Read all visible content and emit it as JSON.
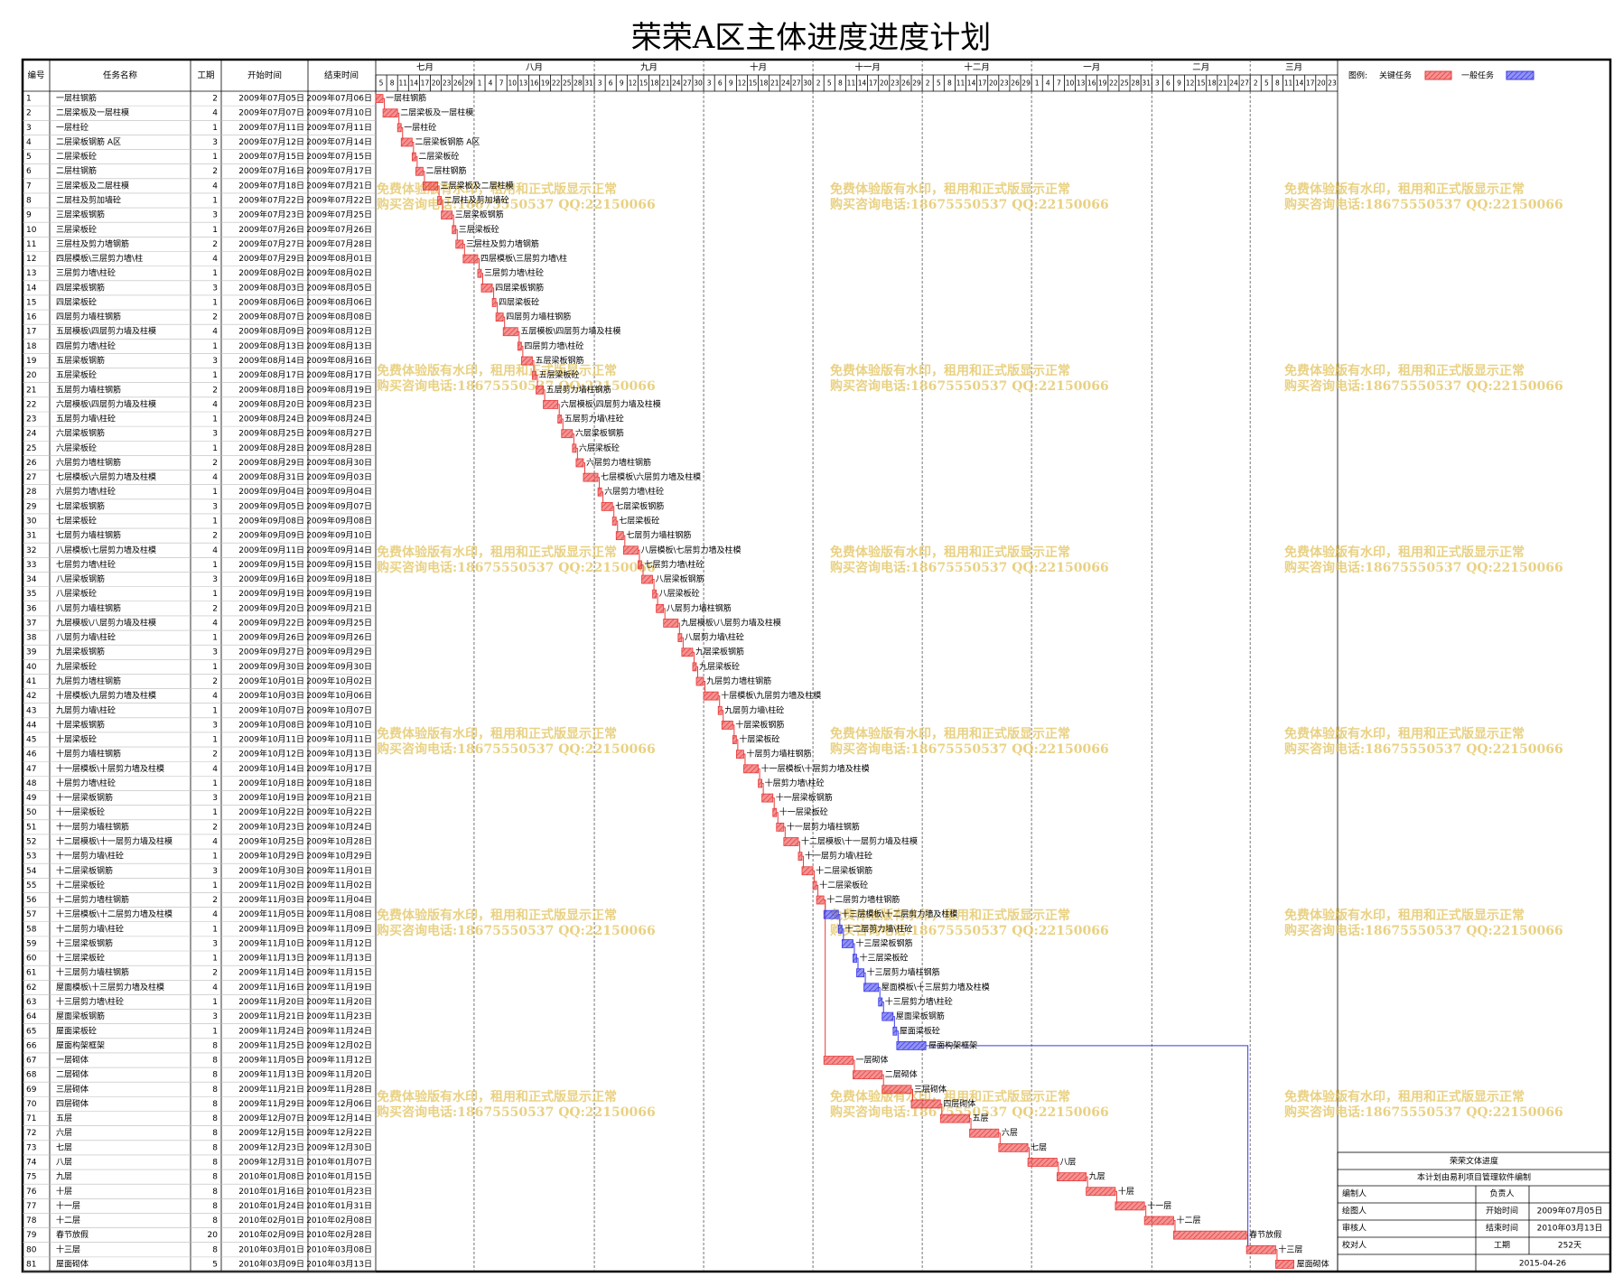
{
  "title": "荣荣A区主体进度进度计划",
  "columns": [
    "编号",
    "任务名称",
    "工期",
    "开始时间",
    "结束时间"
  ],
  "timeline": {
    "months": [
      {
        "name": "七月",
        "days": [
          5,
          8,
          11,
          14,
          17,
          20,
          23,
          26,
          29
        ]
      },
      {
        "name": "八月",
        "days": [
          1,
          4,
          7,
          10,
          13,
          16,
          19,
          22,
          25,
          28,
          31
        ]
      },
      {
        "name": "九月",
        "days": [
          3,
          6,
          9,
          12,
          15,
          18,
          21,
          24,
          27,
          30
        ]
      },
      {
        "name": "十月",
        "days": [
          3,
          6,
          9,
          12,
          15,
          18,
          21,
          24,
          27,
          30
        ]
      },
      {
        "name": "十一月",
        "days": [
          2,
          5,
          8,
          11,
          14,
          17,
          20,
          23,
          26,
          29
        ]
      },
      {
        "name": "十二月",
        "days": [
          2,
          5,
          8,
          11,
          14,
          17,
          20,
          23,
          26,
          29
        ]
      },
      {
        "name": "一月",
        "days": [
          1,
          4,
          7,
          10,
          13,
          16,
          19,
          22,
          25,
          28,
          31
        ]
      },
      {
        "name": "二月",
        "days": [
          3,
          6,
          9,
          12,
          15,
          18,
          21,
          24,
          27
        ]
      },
      {
        "name": "三月",
        "days": [
          2,
          5,
          8,
          11,
          14,
          17,
          20,
          23
        ]
      }
    ]
  },
  "legend": {
    "label": "图例:",
    "critical": {
      "label": "关键任务",
      "color": "#e83a3a"
    },
    "normal": {
      "label": "一般任务",
      "color": "#3a3ae8"
    }
  },
  "tasks": [
    {
      "id": 1,
      "name": "一层柱钢筋",
      "days": 2,
      "start": "2009年07月05日",
      "end": "2009年07月06日",
      "critical": true
    },
    {
      "id": 2,
      "name": "二层梁板及一层柱模",
      "days": 4,
      "start": "2009年07月07日",
      "end": "2009年07月10日",
      "critical": true
    },
    {
      "id": 3,
      "name": "一层柱砼",
      "days": 1,
      "start": "2009年07月11日",
      "end": "2009年07月11日",
      "critical": true
    },
    {
      "id": 4,
      "name": "二层梁板钢筋 A区",
      "days": 3,
      "start": "2009年07月12日",
      "end": "2009年07月14日",
      "critical": true
    },
    {
      "id": 5,
      "name": "二层梁板砼",
      "days": 1,
      "start": "2009年07月15日",
      "end": "2009年07月15日",
      "critical": true
    },
    {
      "id": 6,
      "name": "二层柱钢筋",
      "days": 2,
      "start": "2009年07月16日",
      "end": "2009年07月17日",
      "critical": true
    },
    {
      "id": 7,
      "name": "三层梁板及二层柱模",
      "days": 4,
      "start": "2009年07月18日",
      "end": "2009年07月21日",
      "critical": true
    },
    {
      "id": 8,
      "name": "二层柱及剪加墙砼",
      "days": 1,
      "start": "2009年07月22日",
      "end": "2009年07月22日",
      "critical": true
    },
    {
      "id": 9,
      "name": "三层梁板钢筋",
      "days": 3,
      "start": "2009年07月23日",
      "end": "2009年07月25日",
      "critical": true
    },
    {
      "id": 10,
      "name": "三层梁板砼",
      "days": 1,
      "start": "2009年07月26日",
      "end": "2009年07月26日",
      "critical": true
    },
    {
      "id": 11,
      "name": "三层柱及剪力墙钢筋",
      "days": 2,
      "start": "2009年07月27日",
      "end": "2009年07月28日",
      "critical": true
    },
    {
      "id": 12,
      "name": "四层模板\\三层剪力墙\\柱",
      "days": 4,
      "start": "2009年07月29日",
      "end": "2009年08月01日",
      "critical": true
    },
    {
      "id": 13,
      "name": "三层剪力墙\\柱砼",
      "days": 1,
      "start": "2009年08月02日",
      "end": "2009年08月02日",
      "critical": true
    },
    {
      "id": 14,
      "name": "四层梁板钢筋",
      "days": 3,
      "start": "2009年08月03日",
      "end": "2009年08月05日",
      "critical": true
    },
    {
      "id": 15,
      "name": "四层梁板砼",
      "days": 1,
      "start": "2009年08月06日",
      "end": "2009年08月06日",
      "critical": true
    },
    {
      "id": 16,
      "name": "四层剪力墙柱钢筋",
      "days": 2,
      "start": "2009年08月07日",
      "end": "2009年08月08日",
      "critical": true
    },
    {
      "id": 17,
      "name": "五层模板\\四层剪力墙及柱模",
      "days": 4,
      "start": "2009年08月09日",
      "end": "2009年08月12日",
      "critical": true
    },
    {
      "id": 18,
      "name": "四层剪力墙\\柱砼",
      "days": 1,
      "start": "2009年08月13日",
      "end": "2009年08月13日",
      "critical": true
    },
    {
      "id": 19,
      "name": "五层梁板钢筋",
      "days": 3,
      "start": "2009年08月14日",
      "end": "2009年08月16日",
      "critical": true
    },
    {
      "id": 20,
      "name": "五层梁板砼",
      "days": 1,
      "start": "2009年08月17日",
      "end": "2009年08月17日",
      "critical": true
    },
    {
      "id": 21,
      "name": "五层剪力墙柱钢筋",
      "days": 2,
      "start": "2009年08月18日",
      "end": "2009年08月19日",
      "critical": true
    },
    {
      "id": 22,
      "name": "六层模板\\四层剪力墙及柱模",
      "days": 4,
      "start": "2009年08月20日",
      "end": "2009年08月23日",
      "critical": true
    },
    {
      "id": 23,
      "name": "五层剪力墙\\柱砼",
      "days": 1,
      "start": "2009年08月24日",
      "end": "2009年08月24日",
      "critical": true
    },
    {
      "id": 24,
      "name": "六层梁板钢筋",
      "days": 3,
      "start": "2009年08月25日",
      "end": "2009年08月27日",
      "critical": true
    },
    {
      "id": 25,
      "name": "六层梁板砼",
      "days": 1,
      "start": "2009年08月28日",
      "end": "2009年08月28日",
      "critical": true
    },
    {
      "id": 26,
      "name": "六层剪力墙柱钢筋",
      "days": 2,
      "start": "2009年08月29日",
      "end": "2009年08月30日",
      "critical": true
    },
    {
      "id": 27,
      "name": "七层模板\\六层剪力墙及柱模",
      "days": 4,
      "start": "2009年08月31日",
      "end": "2009年09月03日",
      "critical": true
    },
    {
      "id": 28,
      "name": "六层剪力墙\\柱砼",
      "days": 1,
      "start": "2009年09月04日",
      "end": "2009年09月04日",
      "critical": true
    },
    {
      "id": 29,
      "name": "七层梁板钢筋",
      "days": 3,
      "start": "2009年09月05日",
      "end": "2009年09月07日",
      "critical": true
    },
    {
      "id": 30,
      "name": "七层梁板砼",
      "days": 1,
      "start": "2009年09月08日",
      "end": "2009年09月08日",
      "critical": true
    },
    {
      "id": 31,
      "name": "七层剪力墙柱钢筋",
      "days": 2,
      "start": "2009年09月09日",
      "end": "2009年09月10日",
      "critical": true
    },
    {
      "id": 32,
      "name": "八层模板\\七层剪力墙及柱模",
      "days": 4,
      "start": "2009年09月11日",
      "end": "2009年09月14日",
      "critical": true
    },
    {
      "id": 33,
      "name": "七层剪力墙\\柱砼",
      "days": 1,
      "start": "2009年09月15日",
      "end": "2009年09月15日",
      "critical": true
    },
    {
      "id": 34,
      "name": "八层梁板钢筋",
      "days": 3,
      "start": "2009年09月16日",
      "end": "2009年09月18日",
      "critical": true
    },
    {
      "id": 35,
      "name": "八层梁板砼",
      "days": 1,
      "start": "2009年09月19日",
      "end": "2009年09月19日",
      "critical": true
    },
    {
      "id": 36,
      "name": "八层剪力墙柱钢筋",
      "days": 2,
      "start": "2009年09月20日",
      "end": "2009年09月21日",
      "critical": true
    },
    {
      "id": 37,
      "name": "九层模板\\八层剪力墙及柱模",
      "days": 4,
      "start": "2009年09月22日",
      "end": "2009年09月25日",
      "critical": true
    },
    {
      "id": 38,
      "name": "八层剪力墙\\柱砼",
      "days": 1,
      "start": "2009年09月26日",
      "end": "2009年09月26日",
      "critical": true
    },
    {
      "id": 39,
      "name": "九层梁板钢筋",
      "days": 3,
      "start": "2009年09月27日",
      "end": "2009年09月29日",
      "critical": true
    },
    {
      "id": 40,
      "name": "九层梁板砼",
      "days": 1,
      "start": "2009年09月30日",
      "end": "2009年09月30日",
      "critical": true
    },
    {
      "id": 41,
      "name": "九层剪力墙柱钢筋",
      "days": 2,
      "start": "2009年10月01日",
      "end": "2009年10月02日",
      "critical": true
    },
    {
      "id": 42,
      "name": "十层模板\\九层剪力墙及柱模",
      "days": 4,
      "start": "2009年10月03日",
      "end": "2009年10月06日",
      "critical": true
    },
    {
      "id": 43,
      "name": "九层剪力墙\\柱砼",
      "days": 1,
      "start": "2009年10月07日",
      "end": "2009年10月07日",
      "critical": true
    },
    {
      "id": 44,
      "name": "十层梁板钢筋",
      "days": 3,
      "start": "2009年10月08日",
      "end": "2009年10月10日",
      "critical": true
    },
    {
      "id": 45,
      "name": "十层梁板砼",
      "days": 1,
      "start": "2009年10月11日",
      "end": "2009年10月11日",
      "critical": true
    },
    {
      "id": 46,
      "name": "十层剪力墙柱钢筋",
      "days": 2,
      "start": "2009年10月12日",
      "end": "2009年10月13日",
      "critical": true
    },
    {
      "id": 47,
      "name": "十一层模板\\十层剪力墙及柱模",
      "days": 4,
      "start": "2009年10月14日",
      "end": "2009年10月17日",
      "critical": true
    },
    {
      "id": 48,
      "name": "十层剪力墙\\柱砼",
      "days": 1,
      "start": "2009年10月18日",
      "end": "2009年10月18日",
      "critical": true
    },
    {
      "id": 49,
      "name": "十一层梁板钢筋",
      "days": 3,
      "start": "2009年10月19日",
      "end": "2009年10月21日",
      "critical": true
    },
    {
      "id": 50,
      "name": "十一层梁板砼",
      "days": 1,
      "start": "2009年10月22日",
      "end": "2009年10月22日",
      "critical": true
    },
    {
      "id": 51,
      "name": "十一层剪力墙柱钢筋",
      "days": 2,
      "start": "2009年10月23日",
      "end": "2009年10月24日",
      "critical": true
    },
    {
      "id": 52,
      "name": "十二层模板\\十一层剪力墙及柱模",
      "days": 4,
      "start": "2009年10月25日",
      "end": "2009年10月28日",
      "critical": true
    },
    {
      "id": 53,
      "name": "十一层剪力墙\\柱砼",
      "days": 1,
      "start": "2009年10月29日",
      "end": "2009年10月29日",
      "critical": true
    },
    {
      "id": 54,
      "name": "十二层梁板钢筋",
      "days": 3,
      "start": "2009年10月30日",
      "end": "2009年11月01日",
      "critical": true
    },
    {
      "id": 55,
      "name": "十二层梁板砼",
      "days": 1,
      "start": "2009年11月02日",
      "end": "2009年11月02日",
      "critical": true
    },
    {
      "id": 56,
      "name": "十二层剪力墙柱钢筋",
      "days": 2,
      "start": "2009年11月03日",
      "end": "2009年11月04日",
      "critical": true
    },
    {
      "id": 57,
      "name": "十三层模板\\十二层剪力墙及柱模",
      "days": 4,
      "start": "2009年11月05日",
      "end": "2009年11月08日",
      "critical": false
    },
    {
      "id": 58,
      "name": "十二层剪力墙\\柱砼",
      "days": 1,
      "start": "2009年11月09日",
      "end": "2009年11月09日",
      "critical": false
    },
    {
      "id": 59,
      "name": "十三层梁板钢筋",
      "days": 3,
      "start": "2009年11月10日",
      "end": "2009年11月12日",
      "critical": false
    },
    {
      "id": 60,
      "name": "十三层梁板砼",
      "days": 1,
      "start": "2009年11月13日",
      "end": "2009年11月13日",
      "critical": false
    },
    {
      "id": 61,
      "name": "十三层剪力墙柱钢筋",
      "days": 2,
      "start": "2009年11月14日",
      "end": "2009年11月15日",
      "critical": false
    },
    {
      "id": 62,
      "name": "屋面模板\\十三层剪力墙及柱模",
      "days": 4,
      "start": "2009年11月16日",
      "end": "2009年11月19日",
      "critical": false
    },
    {
      "id": 63,
      "name": "十三层剪力墙\\柱砼",
      "days": 1,
      "start": "2009年11月20日",
      "end": "2009年11月20日",
      "critical": false
    },
    {
      "id": 64,
      "name": "屋面梁板钢筋",
      "days": 3,
      "start": "2009年11月21日",
      "end": "2009年11月23日",
      "critical": false
    },
    {
      "id": 65,
      "name": "屋面梁板砼",
      "days": 1,
      "start": "2009年11月24日",
      "end": "2009年11月24日",
      "critical": false
    },
    {
      "id": 66,
      "name": "屋面构架框架",
      "days": 8,
      "start": "2009年11月25日",
      "end": "2009年12月02日",
      "critical": false
    },
    {
      "id": 67,
      "name": "一层砌体",
      "days": 8,
      "start": "2009年11月05日",
      "end": "2009年11月12日",
      "critical": true
    },
    {
      "id": 68,
      "name": "二层砌体",
      "days": 8,
      "start": "2009年11月13日",
      "end": "2009年11月20日",
      "critical": true
    },
    {
      "id": 69,
      "name": "三层砌体",
      "days": 8,
      "start": "2009年11月21日",
      "end": "2009年11月28日",
      "critical": true
    },
    {
      "id": 70,
      "name": "四层砌体",
      "days": 8,
      "start": "2009年11月29日",
      "end": "2009年12月06日",
      "critical": true
    },
    {
      "id": 71,
      "name": "五层",
      "days": 8,
      "start": "2009年12月07日",
      "end": "2009年12月14日",
      "critical": true
    },
    {
      "id": 72,
      "name": "六层",
      "days": 8,
      "start": "2009年12月15日",
      "end": "2009年12月22日",
      "critical": true
    },
    {
      "id": 73,
      "name": "七层",
      "days": 8,
      "start": "2009年12月23日",
      "end": "2009年12月30日",
      "critical": true
    },
    {
      "id": 74,
      "name": "八层",
      "days": 8,
      "start": "2009年12月31日",
      "end": "2010年01月07日",
      "critical": true
    },
    {
      "id": 75,
      "name": "九层",
      "days": 8,
      "start": "2010年01月08日",
      "end": "2010年01月15日",
      "critical": true
    },
    {
      "id": 76,
      "name": "十层",
      "days": 8,
      "start": "2010年01月16日",
      "end": "2010年01月23日",
      "critical": true
    },
    {
      "id": 77,
      "name": "十一层",
      "days": 8,
      "start": "2010年01月24日",
      "end": "2010年01月31日",
      "critical": true
    },
    {
      "id": 78,
      "name": "十二层",
      "days": 8,
      "start": "2010年02月01日",
      "end": "2010年02月08日",
      "critical": true
    },
    {
      "id": 79,
      "name": "春节放假",
      "days": 20,
      "start": "2010年02月09日",
      "end": "2010年02月28日",
      "critical": true
    },
    {
      "id": 80,
      "name": "十三层",
      "days": 8,
      "start": "2010年03月01日",
      "end": "2010年03月08日",
      "critical": true
    },
    {
      "id": 81,
      "name": "屋面砌体",
      "days": 5,
      "start": "2010年03月09日",
      "end": "2010年03月13日",
      "critical": true
    }
  ],
  "watermark": [
    "免费体验版有水印，租用和正式版显示正常",
    "购买咨询电话:18675550537 QQ:22150066"
  ],
  "info": {
    "title": "荣荣文体进度",
    "subtitle": "本计划由易利项目管理软件编制",
    "left": [
      "编制人",
      "绘图人",
      "审核人",
      "校对人"
    ],
    "right": [
      {
        "label": "负责人"
      },
      {
        "label": "开始时间",
        "value": "2009年07月05日"
      },
      {
        "label": "结束时间",
        "value": "2010年03月13日"
      },
      {
        "label": "工期",
        "value": "252天"
      }
    ],
    "date": "2015-04-26"
  }
}
